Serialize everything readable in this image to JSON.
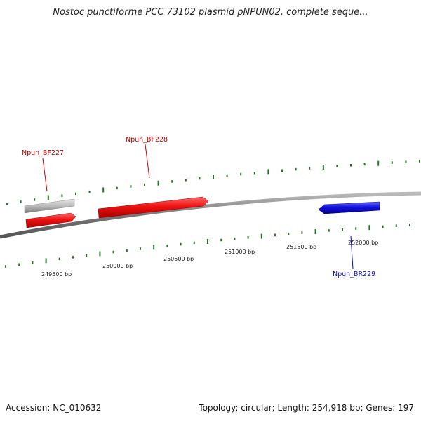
{
  "title": "Nostoc punctiforme PCC 73102 plasmid pNPUN02, complete seque...",
  "footer": {
    "accession": "Accession: NC_010632",
    "topology": "Topology: circular; Length: 254,918 bp; Genes: 197"
  },
  "colors": {
    "forward_gene": "#ee1111",
    "reverse_gene": "#1111dd",
    "other_feature": "#bbbbbb",
    "backbone": "#888888",
    "ticks": "#1a7a1a"
  },
  "ticks": [
    {
      "label": "249500 bp"
    },
    {
      "label": "250000 bp"
    },
    {
      "label": "250500 bp"
    },
    {
      "label": "251000 bp"
    },
    {
      "label": "251500 bp"
    },
    {
      "label": "252000 bp"
    }
  ],
  "genes": [
    {
      "name": "Npun_BF227",
      "strand": "forward"
    },
    {
      "name": "Npun_BF228",
      "strand": "forward"
    },
    {
      "name": "Npun_BR229",
      "strand": "reverse"
    }
  ]
}
